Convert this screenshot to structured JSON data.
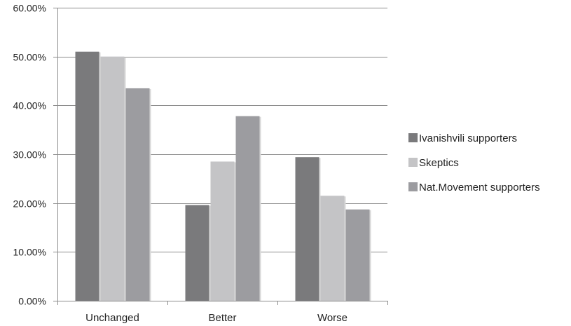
{
  "chart_data": {
    "type": "bar",
    "title": "",
    "xlabel": "",
    "ylabel": "",
    "categories": [
      "Unchanged",
      "Better",
      "Worse"
    ],
    "series": [
      {
        "name": "Ivanishvili supporters",
        "values": [
          51.0,
          19.6,
          29.4
        ],
        "color": "#7a7a7c"
      },
      {
        "name": "Skeptics",
        "values": [
          50.0,
          28.5,
          21.5
        ],
        "color": "#c4c4c6"
      },
      {
        "name": "Nat.Movement supporters",
        "values": [
          43.5,
          37.8,
          18.7
        ],
        "color": "#9c9ca0"
      }
    ],
    "ylim": [
      0,
      60
    ],
    "yticks": [
      0,
      10,
      20,
      30,
      40,
      50,
      60
    ],
    "ytick_labels": [
      "0.00%",
      "10.00%",
      "20.00%",
      "30.00%",
      "40.00%",
      "50.00%",
      "60.00%"
    ],
    "grid": true,
    "legend_position": "right"
  }
}
